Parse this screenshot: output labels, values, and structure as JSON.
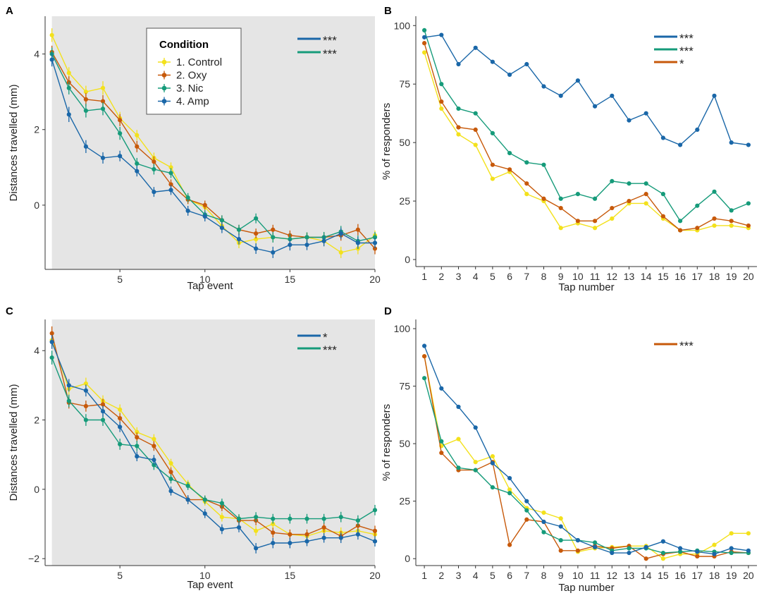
{
  "colors": {
    "control": "#f3e11c",
    "oxy": "#c7590a",
    "nic": "#169b7a",
    "amp": "#1a67a8"
  },
  "chart_data": [
    {
      "panel": "A",
      "type": "line",
      "error_bars": true,
      "shaded_background": true,
      "xlabel": "Tap event",
      "ylabel": "Distances travelled (mm)",
      "xlim": [
        0.6,
        20
      ],
      "ylim": [
        -1.7,
        5.0
      ],
      "xticks": [
        5,
        10,
        15,
        20
      ],
      "yticks": [
        0,
        2,
        4
      ],
      "x": [
        1,
        2,
        3,
        4,
        5,
        6,
        7,
        8,
        9,
        10,
        11,
        12,
        13,
        14,
        15,
        16,
        17,
        18,
        19,
        20
      ],
      "legend": {
        "title": "Condition",
        "entries": [
          "1. Control",
          "2. Oxy",
          "3. Nic",
          "4. Amp"
        ]
      },
      "significance": [
        {
          "color": "amp",
          "label": "***"
        },
        {
          "color": "nic",
          "label": "***"
        }
      ],
      "series": [
        {
          "name": "1. Control",
          "color": "control",
          "values": [
            4.5,
            3.5,
            3.0,
            3.1,
            2.3,
            1.85,
            1.25,
            1.0,
            0.15,
            -0.05,
            -0.55,
            -1.0,
            -0.9,
            -0.85,
            -0.9,
            -0.85,
            -0.95,
            -1.25,
            -1.15,
            -0.8
          ],
          "err": [
            0.18,
            0.15,
            0.16,
            0.18,
            0.17,
            0.14,
            0.14,
            0.13,
            0.12,
            0.12,
            0.12,
            0.14,
            0.14,
            0.13,
            0.13,
            0.13,
            0.13,
            0.15,
            0.15,
            0.13
          ]
        },
        {
          "name": "2. Oxy",
          "color": "oxy",
          "values": [
            4.05,
            3.25,
            2.8,
            2.75,
            2.25,
            1.55,
            1.15,
            0.55,
            0.15,
            0.0,
            -0.4,
            -0.65,
            -0.75,
            -0.65,
            -0.8,
            -0.85,
            -0.85,
            -0.8,
            -0.65,
            -1.15
          ],
          "err": [
            0.17,
            0.16,
            0.17,
            0.16,
            0.16,
            0.15,
            0.14,
            0.13,
            0.12,
            0.12,
            0.13,
            0.13,
            0.13,
            0.13,
            0.13,
            0.13,
            0.13,
            0.14,
            0.15,
            0.15
          ]
        },
        {
          "name": "3. Nic",
          "color": "nic",
          "values": [
            4.0,
            3.1,
            2.5,
            2.55,
            1.9,
            1.1,
            0.95,
            0.85,
            0.2,
            -0.25,
            -0.4,
            -0.65,
            -0.35,
            -0.85,
            -0.9,
            -0.85,
            -0.85,
            -0.7,
            -0.95,
            -0.85
          ],
          "err": [
            0.17,
            0.17,
            0.18,
            0.17,
            0.17,
            0.15,
            0.14,
            0.13,
            0.12,
            0.12,
            0.13,
            0.13,
            0.13,
            0.14,
            0.14,
            0.13,
            0.14,
            0.15,
            0.15,
            0.14
          ]
        },
        {
          "name": "4. Amp",
          "color": "amp",
          "values": [
            3.85,
            2.4,
            1.55,
            1.25,
            1.3,
            0.9,
            0.35,
            0.4,
            -0.15,
            -0.3,
            -0.6,
            -0.9,
            -1.15,
            -1.25,
            -1.05,
            -1.05,
            -0.95,
            -0.75,
            -1.0,
            -1.0
          ],
          "err": [
            0.18,
            0.2,
            0.17,
            0.15,
            0.14,
            0.14,
            0.13,
            0.13,
            0.13,
            0.13,
            0.14,
            0.14,
            0.14,
            0.15,
            0.15,
            0.14,
            0.14,
            0.15,
            0.16,
            0.14
          ]
        }
      ]
    },
    {
      "panel": "B",
      "type": "line",
      "error_bars": false,
      "shaded_background": false,
      "xlabel": "Tap number",
      "ylabel": "% of responders",
      "xlim": [
        0.5,
        20.5
      ],
      "ylim": [
        -3,
        104
      ],
      "xticks": [
        1,
        2,
        3,
        4,
        5,
        6,
        7,
        8,
        9,
        10,
        11,
        12,
        13,
        14,
        15,
        16,
        17,
        18,
        19,
        20
      ],
      "yticks": [
        0,
        25,
        50,
        75,
        100
      ],
      "x": [
        1,
        2,
        3,
        4,
        5,
        6,
        7,
        8,
        9,
        10,
        11,
        12,
        13,
        14,
        15,
        16,
        17,
        18,
        19,
        20
      ],
      "significance": [
        {
          "color": "amp",
          "label": "***"
        },
        {
          "color": "nic",
          "label": "***"
        },
        {
          "color": "oxy",
          "label": "*"
        }
      ],
      "series": [
        {
          "name": "1. Control",
          "color": "control",
          "values": [
            88.5,
            64.5,
            53.5,
            49,
            34.5,
            37.5,
            28,
            25,
            13.5,
            15.5,
            13.5,
            17.5,
            24,
            24,
            17.5,
            12.5,
            12.5,
            14.5,
            14.5,
            13.5
          ]
        },
        {
          "name": "2. Oxy",
          "color": "oxy",
          "values": [
            92.5,
            67.5,
            56.5,
            55.5,
            40.5,
            38.5,
            32.5,
            26,
            22,
            16.5,
            16.5,
            22,
            25,
            28,
            18.5,
            12.5,
            13.5,
            17.5,
            16.5,
            14.5
          ]
        },
        {
          "name": "3. Nic",
          "color": "nic",
          "values": [
            98,
            75,
            64.5,
            62.5,
            54,
            45.5,
            41.5,
            40.5,
            26,
            28,
            26,
            33.5,
            32.5,
            32.5,
            28,
            16.5,
            23,
            29,
            21,
            24
          ]
        },
        {
          "name": "4. Amp",
          "color": "amp",
          "values": [
            95,
            96,
            83.5,
            90.5,
            84.5,
            79,
            83.5,
            74,
            70,
            76.5,
            65.5,
            70,
            59.5,
            62.5,
            52,
            49,
            55.5,
            70,
            50,
            49
          ]
        }
      ]
    },
    {
      "panel": "C",
      "type": "line",
      "error_bars": true,
      "shaded_background": true,
      "xlabel": "Tap event",
      "ylabel": "Distances travelled (mm)",
      "xlim": [
        0.6,
        20
      ],
      "ylim": [
        -2.2,
        4.9
      ],
      "xticks": [
        5,
        10,
        15,
        20
      ],
      "yticks": [
        -2,
        0,
        2,
        4
      ],
      "x": [
        1,
        2,
        3,
        4,
        5,
        6,
        7,
        8,
        9,
        10,
        11,
        12,
        13,
        14,
        15,
        16,
        17,
        18,
        19,
        20
      ],
      "significance": [
        {
          "color": "amp",
          "label": "*"
        },
        {
          "color": "nic",
          "label": "***"
        }
      ],
      "series": [
        {
          "name": "1. Control",
          "color": "control",
          "values": [
            4.3,
            2.9,
            3.05,
            2.55,
            2.3,
            1.65,
            1.45,
            0.75,
            0.15,
            -0.35,
            -0.8,
            -0.85,
            -1.2,
            -1.0,
            -1.3,
            -1.35,
            -1.2,
            -1.25,
            -1.2,
            -1.3
          ],
          "err": [
            0.2,
            0.18,
            0.17,
            0.16,
            0.15,
            0.14,
            0.14,
            0.13,
            0.12,
            0.12,
            0.13,
            0.13,
            0.14,
            0.14,
            0.14,
            0.14,
            0.14,
            0.15,
            0.15,
            0.15
          ]
        },
        {
          "name": "2. Oxy",
          "color": "oxy",
          "values": [
            4.5,
            2.5,
            2.4,
            2.45,
            2.05,
            1.5,
            1.25,
            0.5,
            -0.3,
            -0.3,
            -0.5,
            -0.9,
            -0.9,
            -1.25,
            -1.3,
            -1.3,
            -1.1,
            -1.35,
            -1.05,
            -1.2
          ],
          "err": [
            0.2,
            0.17,
            0.16,
            0.16,
            0.15,
            0.14,
            0.14,
            0.13,
            0.12,
            0.12,
            0.13,
            0.13,
            0.14,
            0.14,
            0.14,
            0.14,
            0.14,
            0.15,
            0.15,
            0.15
          ]
        },
        {
          "name": "3. Nic",
          "color": "nic",
          "values": [
            3.8,
            2.55,
            2.0,
            2.0,
            1.3,
            1.25,
            0.7,
            0.3,
            0.1,
            -0.3,
            -0.4,
            -0.85,
            -0.8,
            -0.85,
            -0.85,
            -0.85,
            -0.85,
            -0.8,
            -0.9,
            -0.6
          ],
          "err": [
            0.2,
            0.18,
            0.17,
            0.17,
            0.16,
            0.15,
            0.14,
            0.13,
            0.12,
            0.12,
            0.13,
            0.13,
            0.14,
            0.14,
            0.14,
            0.14,
            0.14,
            0.15,
            0.15,
            0.15
          ]
        },
        {
          "name": "4. Amp",
          "color": "amp",
          "values": [
            4.25,
            3.0,
            2.85,
            2.25,
            1.8,
            0.95,
            0.85,
            -0.05,
            -0.3,
            -0.7,
            -1.15,
            -1.1,
            -1.7,
            -1.55,
            -1.55,
            -1.5,
            -1.4,
            -1.4,
            -1.3,
            -1.5
          ],
          "err": [
            0.2,
            0.18,
            0.17,
            0.16,
            0.15,
            0.14,
            0.14,
            0.13,
            0.13,
            0.13,
            0.14,
            0.14,
            0.15,
            0.15,
            0.15,
            0.14,
            0.14,
            0.15,
            0.15,
            0.15
          ]
        }
      ]
    },
    {
      "panel": "D",
      "type": "line",
      "error_bars": false,
      "shaded_background": false,
      "xlabel": "Tap number",
      "ylabel": "% of responders",
      "xlim": [
        0.5,
        20.5
      ],
      "ylim": [
        -3,
        104
      ],
      "xticks": [
        1,
        2,
        3,
        4,
        5,
        6,
        7,
        8,
        9,
        10,
        11,
        12,
        13,
        14,
        15,
        16,
        17,
        18,
        19,
        20
      ],
      "yticks": [
        0,
        25,
        50,
        75,
        100
      ],
      "x": [
        1,
        2,
        3,
        4,
        5,
        6,
        7,
        8,
        9,
        10,
        11,
        12,
        13,
        14,
        15,
        16,
        17,
        18,
        19,
        20
      ],
      "significance": [
        {
          "color": "oxy",
          "label": "***"
        }
      ],
      "series": [
        {
          "name": "1. Control",
          "color": "control",
          "values": [
            88,
            49,
            52,
            42,
            44.5,
            30,
            22,
            20,
            17.5,
            3,
            4.5,
            5,
            5.5,
            5.5,
            0,
            2,
            2,
            6,
            11,
            11
          ]
        },
        {
          "name": "2. Oxy",
          "color": "oxy",
          "values": [
            88,
            46,
            38.5,
            38.5,
            42,
            6,
            17,
            16,
            3.5,
            3.5,
            5.5,
            4.5,
            5.5,
            0,
            2,
            3,
            1,
            1,
            3,
            2.5
          ]
        },
        {
          "name": "3. Nic",
          "color": "nic",
          "values": [
            78.5,
            51,
            39.5,
            38.5,
            31,
            28.5,
            21,
            11.5,
            8,
            8,
            7,
            3.5,
            4.5,
            4.5,
            2.5,
            3,
            3.5,
            3,
            2.5,
            2.5
          ]
        },
        {
          "name": "4. Amp",
          "color": "amp",
          "values": [
            92.5,
            74,
            66,
            57,
            41.5,
            35,
            25,
            16,
            14,
            8,
            5,
            2.5,
            2.5,
            5,
            7.5,
            4.5,
            3,
            2,
            4.5,
            3.5
          ]
        }
      ]
    }
  ]
}
